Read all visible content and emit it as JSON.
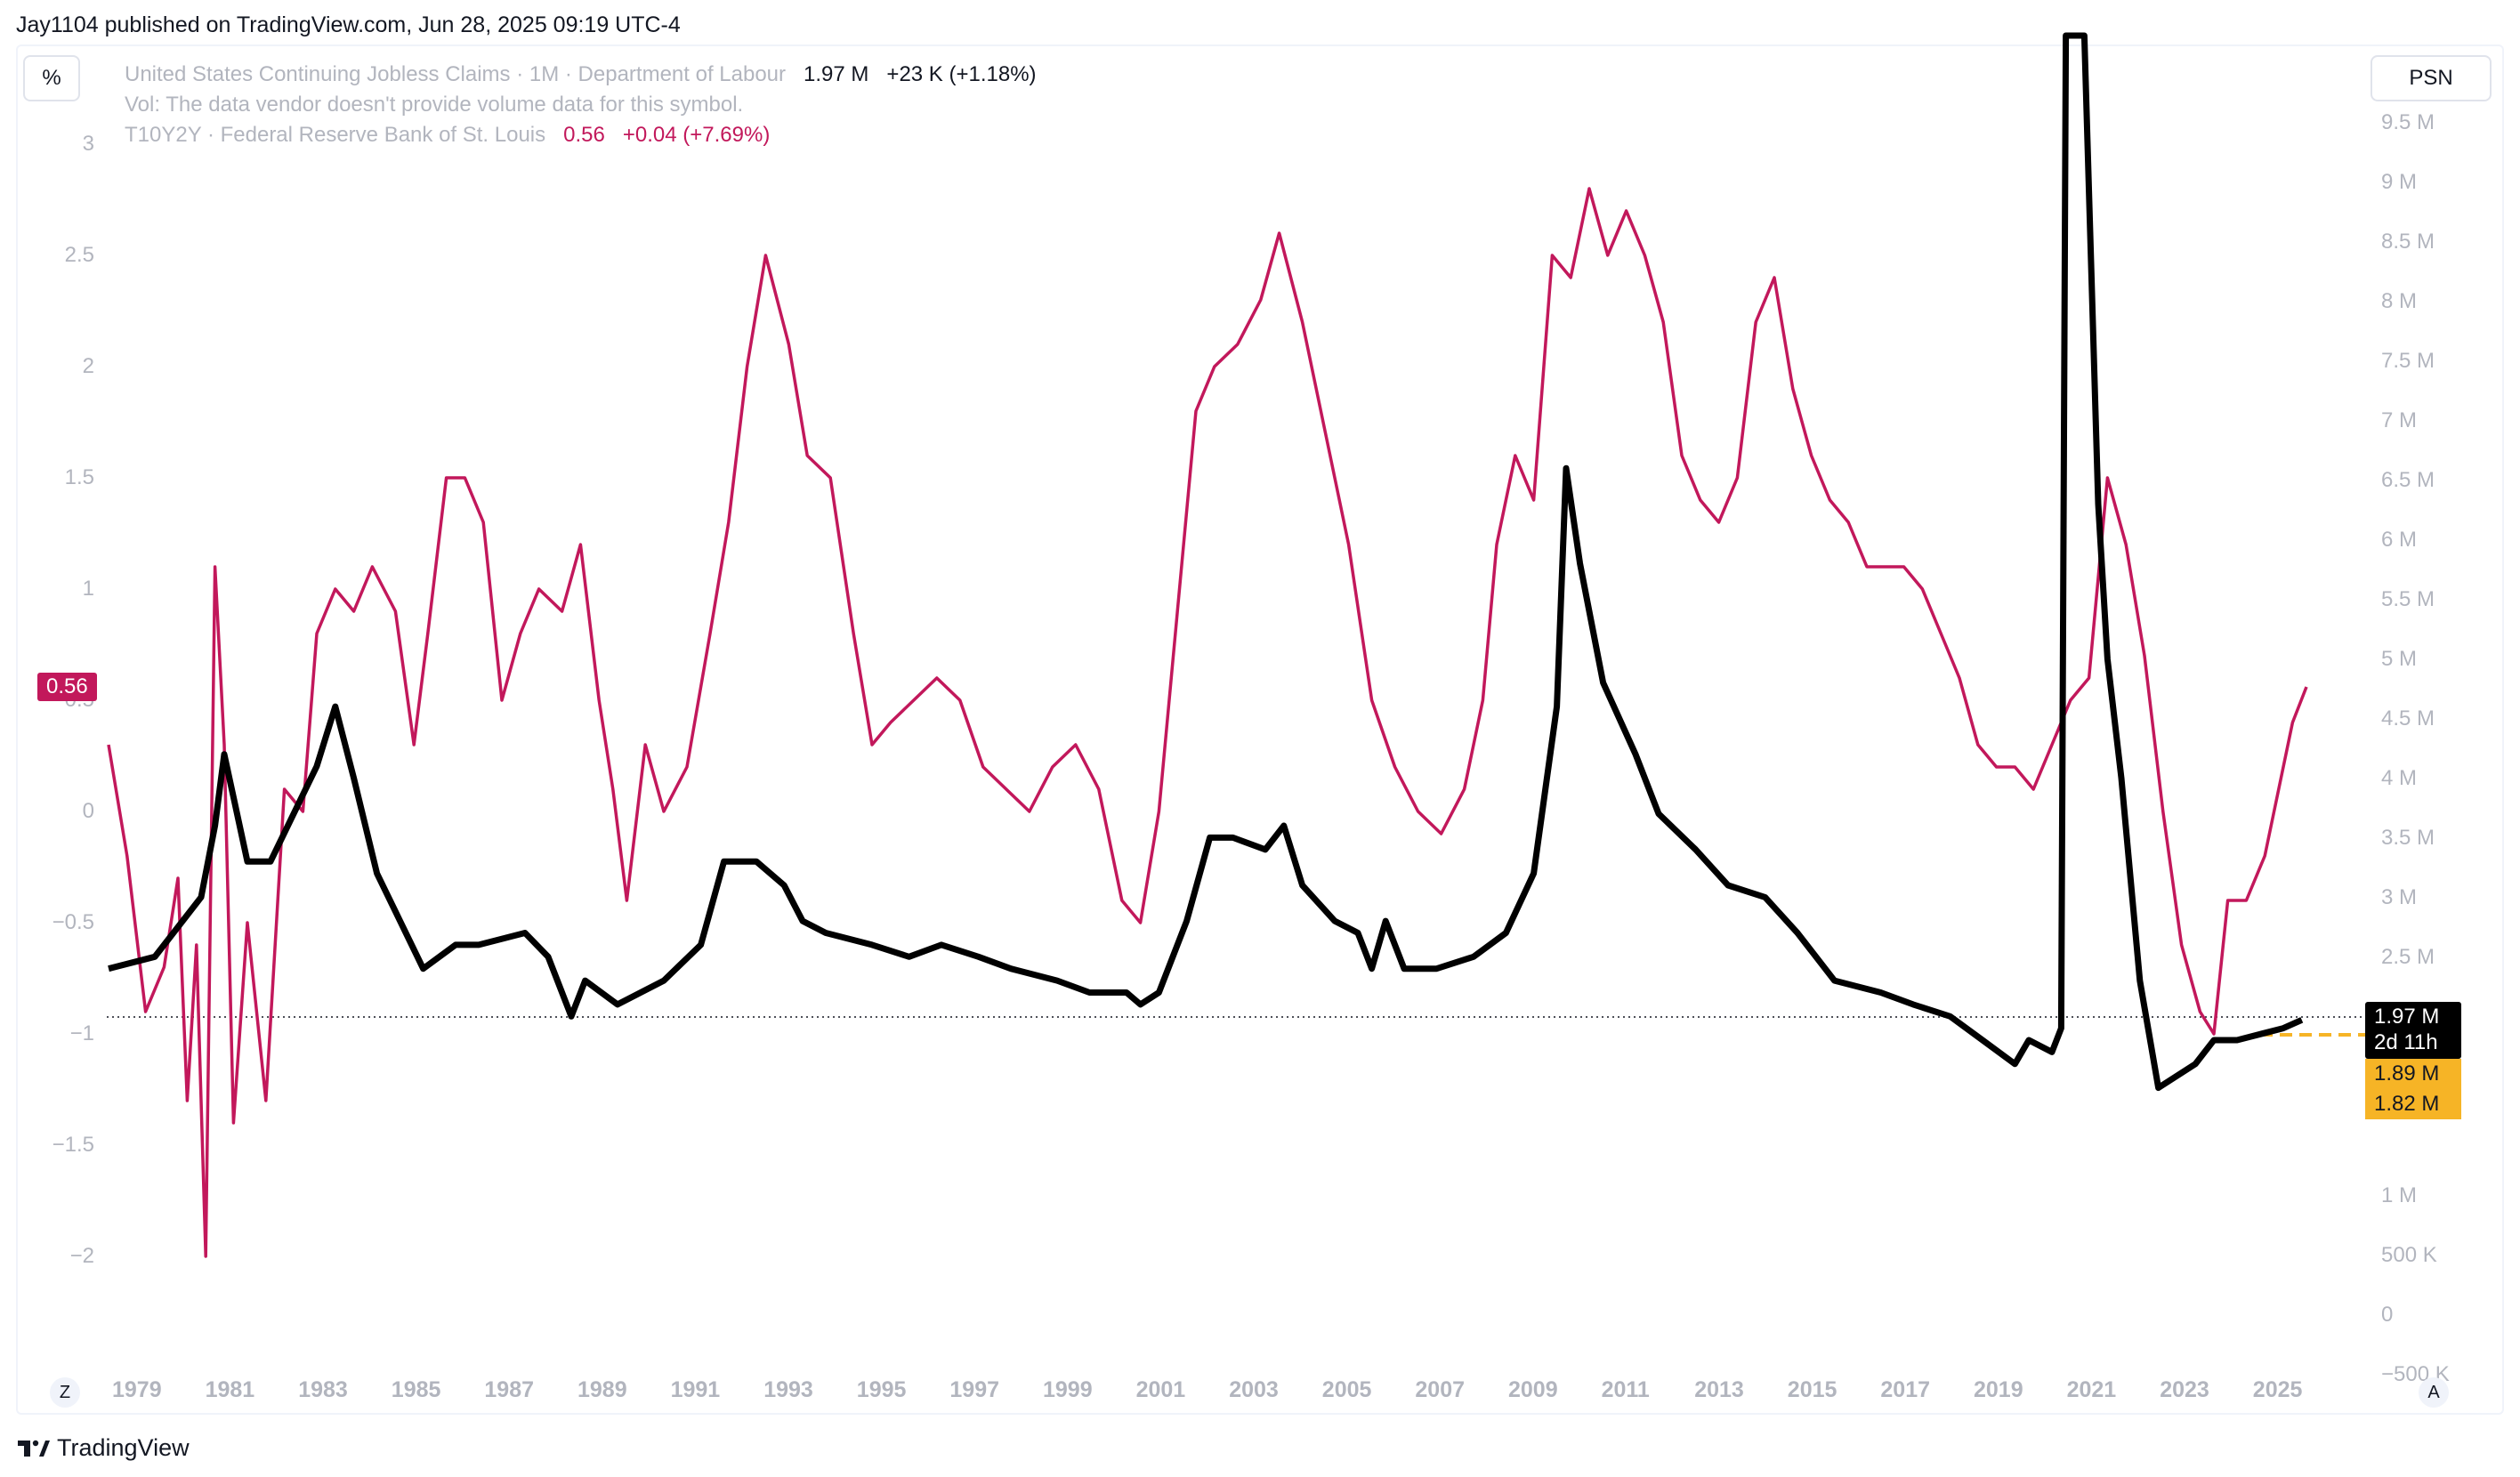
{
  "publisher": "Jay1104 published on TradingView.com, Jun 28, 2025 09:19 UTC-4",
  "buttons": {
    "left_scale": "%",
    "right_scale": "PSN"
  },
  "legend": {
    "main_name": "United States Continuing Jobless Claims · 1M · Department of Labour",
    "main_value": "1.97 M",
    "main_change": "+23 K (+1.18%)",
    "volume_note": "Vol: The data vendor doesn't provide volume data for this symbol.",
    "spread_name": "T10Y2Y · Federal Reserve Bank of St. Louis",
    "spread_value": "0.56",
    "spread_change": "+0.04 (+7.69%)"
  },
  "left_ticks": [
    "3",
    "2.5",
    "2",
    "1.5",
    "1",
    "0.5",
    "0",
    "−0.5",
    "−1",
    "−1.5",
    "−2"
  ],
  "right_ticks": [
    "9.5 M",
    "9 M",
    "8.5 M",
    "8 M",
    "7.5 M",
    "7 M",
    "6.5 M",
    "6 M",
    "5.5 M",
    "5 M",
    "4.5 M",
    "4 M",
    "3.5 M",
    "3 M",
    "2.5 M",
    "",
    "",
    "",
    "1 M",
    "500 K",
    "0",
    "−500 K"
  ],
  "x_ticks": [
    "1979",
    "1981",
    "1983",
    "1985",
    "1987",
    "1989",
    "1991",
    "1993",
    "1995",
    "1997",
    "1999",
    "2001",
    "2003",
    "2005",
    "2007",
    "2009",
    "2011",
    "2013",
    "2015",
    "2017",
    "2019",
    "2021",
    "2023",
    "2025"
  ],
  "corner_left": "Z",
  "corner_right": "A",
  "tags": {
    "spread_last": "0.56",
    "claims_last": "1.97 M",
    "countdown": "2d 11h",
    "level_1": "1.89 M",
    "level_2": "1.82 M"
  },
  "footer": {
    "brand": "TradingView"
  },
  "colors": {
    "claims": "#000000",
    "spread": "#c2185b",
    "projection": "#f6b426",
    "grid_text": "#b2b5be"
  },
  "chart_data": [
    {
      "type": "line",
      "name": "United States Continuing Jobless Claims",
      "axis": "right",
      "ylim": [
        -500000,
        9800000
      ],
      "points": [
        [
          1978.0,
          2.4
        ],
        [
          1979.0,
          2.5
        ],
        [
          1980.0,
          3.0
        ],
        [
          1980.3,
          3.6
        ],
        [
          1980.5,
          4.2
        ],
        [
          1981.0,
          3.3
        ],
        [
          1981.5,
          3.3
        ],
        [
          1982.0,
          3.7
        ],
        [
          1982.5,
          4.1
        ],
        [
          1982.9,
          4.6
        ],
        [
          1983.3,
          4.0
        ],
        [
          1983.8,
          3.2
        ],
        [
          1984.3,
          2.8
        ],
        [
          1984.8,
          2.4
        ],
        [
          1985.5,
          2.6
        ],
        [
          1986.0,
          2.6
        ],
        [
          1987.0,
          2.7
        ],
        [
          1987.5,
          2.5
        ],
        [
          1988.0,
          2.0
        ],
        [
          1988.3,
          2.3
        ],
        [
          1989.0,
          2.1
        ],
        [
          1989.5,
          2.2
        ],
        [
          1990.0,
          2.3
        ],
        [
          1990.8,
          2.6
        ],
        [
          1991.3,
          3.3
        ],
        [
          1992.0,
          3.3
        ],
        [
          1992.6,
          3.1
        ],
        [
          1993.0,
          2.8
        ],
        [
          1993.5,
          2.7
        ],
        [
          1994.5,
          2.6
        ],
        [
          1995.3,
          2.5
        ],
        [
          1996.0,
          2.6
        ],
        [
          1996.8,
          2.5
        ],
        [
          1997.5,
          2.4
        ],
        [
          1998.5,
          2.3
        ],
        [
          1999.2,
          2.2
        ],
        [
          2000.0,
          2.2
        ],
        [
          2000.3,
          2.1
        ],
        [
          2000.7,
          2.2
        ],
        [
          2001.3,
          2.8
        ],
        [
          2001.8,
          3.5
        ],
        [
          2002.3,
          3.5
        ],
        [
          2003.0,
          3.4
        ],
        [
          2003.4,
          3.6
        ],
        [
          2003.8,
          3.1
        ],
        [
          2004.5,
          2.8
        ],
        [
          2005.0,
          2.7
        ],
        [
          2005.3,
          2.4
        ],
        [
          2005.6,
          2.8
        ],
        [
          2006.0,
          2.4
        ],
        [
          2006.7,
          2.4
        ],
        [
          2007.5,
          2.5
        ],
        [
          2008.2,
          2.7
        ],
        [
          2008.8,
          3.2
        ],
        [
          2009.3,
          4.6
        ],
        [
          2009.5,
          6.6
        ],
        [
          2009.8,
          5.8
        ],
        [
          2010.3,
          4.8
        ],
        [
          2011.0,
          4.2
        ],
        [
          2011.5,
          3.7
        ],
        [
          2012.3,
          3.4
        ],
        [
          2013.0,
          3.1
        ],
        [
          2013.8,
          3.0
        ],
        [
          2014.5,
          2.7
        ],
        [
          2015.3,
          2.3
        ],
        [
          2016.3,
          2.2
        ],
        [
          2017.0,
          2.1
        ],
        [
          2017.8,
          2.0
        ],
        [
          2018.5,
          1.8
        ],
        [
          2019.2,
          1.6
        ],
        [
          2019.5,
          1.8
        ],
        [
          2020.0,
          1.7
        ],
        [
          2020.2,
          1.9
        ],
        [
          2020.3,
          21.0
        ],
        [
          2020.7,
          18.0
        ],
        [
          2021.0,
          6.3
        ],
        [
          2021.2,
          5.0
        ],
        [
          2021.5,
          4.0
        ],
        [
          2021.9,
          2.3
        ],
        [
          2022.3,
          1.4
        ],
        [
          2022.7,
          1.5
        ],
        [
          2023.1,
          1.6
        ],
        [
          2023.5,
          1.8
        ],
        [
          2024.0,
          1.8
        ],
        [
          2024.5,
          1.85
        ],
        [
          2025.0,
          1.9
        ],
        [
          2025.4,
          1.97
        ]
      ]
    },
    {
      "type": "line",
      "name": "T10Y2Y",
      "axis": "left",
      "ylim": [
        -2.3,
        3.3
      ],
      "points": [
        [
          1978.0,
          0.3
        ],
        [
          1978.4,
          -0.2
        ],
        [
          1978.8,
          -0.9
        ],
        [
          1979.2,
          -0.7
        ],
        [
          1979.5,
          -0.3
        ],
        [
          1979.7,
          -1.3
        ],
        [
          1979.9,
          -0.6
        ],
        [
          1980.1,
          -2.0
        ],
        [
          1980.3,
          1.1
        ],
        [
          1980.5,
          0.3
        ],
        [
          1980.7,
          -1.4
        ],
        [
          1981.0,
          -0.5
        ],
        [
          1981.4,
          -1.3
        ],
        [
          1981.8,
          0.1
        ],
        [
          1982.2,
          0.0
        ],
        [
          1982.5,
          0.8
        ],
        [
          1982.9,
          1.0
        ],
        [
          1983.3,
          0.9
        ],
        [
          1983.7,
          1.1
        ],
        [
          1984.2,
          0.9
        ],
        [
          1984.6,
          0.3
        ],
        [
          1984.9,
          0.8
        ],
        [
          1985.3,
          1.5
        ],
        [
          1985.7,
          1.5
        ],
        [
          1986.1,
          1.3
        ],
        [
          1986.5,
          0.5
        ],
        [
          1986.9,
          0.8
        ],
        [
          1987.3,
          1.0
        ],
        [
          1987.8,
          0.9
        ],
        [
          1988.2,
          1.2
        ],
        [
          1988.6,
          0.5
        ],
        [
          1988.9,
          0.1
        ],
        [
          1989.2,
          -0.4
        ],
        [
          1989.6,
          0.3
        ],
        [
          1990.0,
          0.0
        ],
        [
          1990.5,
          0.2
        ],
        [
          1991.0,
          0.8
        ],
        [
          1991.4,
          1.3
        ],
        [
          1991.8,
          2.0
        ],
        [
          1992.2,
          2.5
        ],
        [
          1992.7,
          2.1
        ],
        [
          1993.1,
          1.6
        ],
        [
          1993.6,
          1.5
        ],
        [
          1994.1,
          0.8
        ],
        [
          1994.5,
          0.3
        ],
        [
          1994.9,
          0.4
        ],
        [
          1995.4,
          0.5
        ],
        [
          1995.9,
          0.6
        ],
        [
          1996.4,
          0.5
        ],
        [
          1996.9,
          0.2
        ],
        [
          1997.4,
          0.1
        ],
        [
          1997.9,
          0.0
        ],
        [
          1998.4,
          0.2
        ],
        [
          1998.9,
          0.3
        ],
        [
          1999.4,
          0.1
        ],
        [
          1999.9,
          -0.4
        ],
        [
          2000.3,
          -0.5
        ],
        [
          2000.7,
          0.0
        ],
        [
          2001.1,
          0.9
        ],
        [
          2001.5,
          1.8
        ],
        [
          2001.9,
          2.0
        ],
        [
          2002.4,
          2.1
        ],
        [
          2002.9,
          2.3
        ],
        [
          2003.3,
          2.6
        ],
        [
          2003.8,
          2.2
        ],
        [
          2004.3,
          1.7
        ],
        [
          2004.8,
          1.2
        ],
        [
          2005.3,
          0.5
        ],
        [
          2005.8,
          0.2
        ],
        [
          2006.3,
          0.0
        ],
        [
          2006.8,
          -0.1
        ],
        [
          2007.3,
          0.1
        ],
        [
          2007.7,
          0.5
        ],
        [
          2008.0,
          1.2
        ],
        [
          2008.4,
          1.6
        ],
        [
          2008.8,
          1.4
        ],
        [
          2009.2,
          2.5
        ],
        [
          2009.6,
          2.4
        ],
        [
          2010.0,
          2.8
        ],
        [
          2010.4,
          2.5
        ],
        [
          2010.8,
          2.7
        ],
        [
          2011.2,
          2.5
        ],
        [
          2011.6,
          2.2
        ],
        [
          2012.0,
          1.6
        ],
        [
          2012.4,
          1.4
        ],
        [
          2012.8,
          1.3
        ],
        [
          2013.2,
          1.5
        ],
        [
          2013.6,
          2.2
        ],
        [
          2014.0,
          2.4
        ],
        [
          2014.4,
          1.9
        ],
        [
          2014.8,
          1.6
        ],
        [
          2015.2,
          1.4
        ],
        [
          2015.6,
          1.3
        ],
        [
          2016.0,
          1.1
        ],
        [
          2016.4,
          1.1
        ],
        [
          2016.8,
          1.1
        ],
        [
          2017.2,
          1.0
        ],
        [
          2017.6,
          0.8
        ],
        [
          2018.0,
          0.6
        ],
        [
          2018.4,
          0.3
        ],
        [
          2018.8,
          0.2
        ],
        [
          2019.2,
          0.2
        ],
        [
          2019.6,
          0.1
        ],
        [
          2020.0,
          0.3
        ],
        [
          2020.4,
          0.5
        ],
        [
          2020.8,
          0.6
        ],
        [
          2021.2,
          1.5
        ],
        [
          2021.6,
          1.2
        ],
        [
          2022.0,
          0.7
        ],
        [
          2022.4,
          0.0
        ],
        [
          2022.8,
          -0.6
        ],
        [
          2023.2,
          -0.9
        ],
        [
          2023.5,
          -1.0
        ],
        [
          2023.8,
          -0.4
        ],
        [
          2024.2,
          -0.4
        ],
        [
          2024.6,
          -0.2
        ],
        [
          2024.9,
          0.1
        ],
        [
          2025.2,
          0.4
        ],
        [
          2025.5,
          0.56
        ]
      ]
    }
  ]
}
